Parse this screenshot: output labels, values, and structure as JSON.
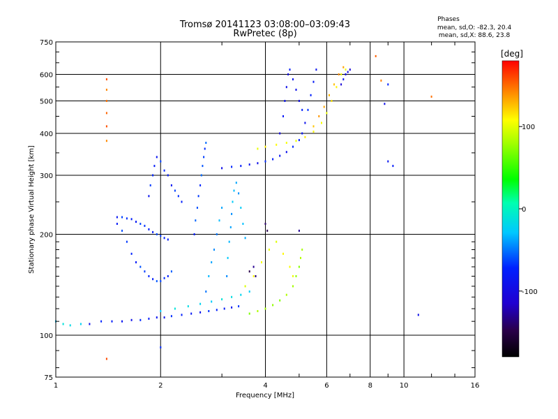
{
  "chart_data": {
    "type": "scatter",
    "title": "Tromsø 20141123 03:08:00–03:09:43",
    "subtitle": "RwPretec (8p)",
    "xlabel": "Frequency [MHz]",
    "ylabel": "Stationary phase Virtual Height [km]",
    "x_scale": "log",
    "y_scale": "log",
    "xlim": [
      1,
      16
    ],
    "ylim": [
      75,
      750
    ],
    "x_ticks": [
      1,
      2,
      4,
      6,
      8,
      10,
      16
    ],
    "x_tick_labels": [
      "1",
      "2",
      "4",
      "6",
      "8",
      "10",
      "16"
    ],
    "x_minor_ticks": [
      3,
      5,
      7,
      9,
      12,
      14
    ],
    "y_ticks": [
      75,
      100,
      200,
      300,
      400,
      500,
      600,
      750
    ],
    "y_tick_labels": [
      "75",
      "100",
      "200",
      "300",
      "400",
      "500",
      "600",
      "750"
    ],
    "y_minor_ticks": [
      80,
      90,
      110,
      120,
      130,
      140,
      150,
      160,
      170,
      180,
      190,
      250,
      350,
      450,
      550,
      650,
      700
    ],
    "grid": true,
    "phases_box": {
      "title": "Phases",
      "line1": "mean, sd,O: -82.3, 20.4",
      "line2": "mean, sd,X: 88.6, 23.8"
    },
    "colorbar": {
      "label": "[deg]",
      "range": [
        -180,
        180
      ],
      "ticks": [
        100,
        0,
        -100
      ],
      "tick_labels": [
        "100",
        "0",
        "-100"
      ],
      "colors": [
        "#ff0000",
        "#ff8800",
        "#ffff00",
        "#00ff00",
        "#00ffff",
        "#0000ff",
        "#220044",
        "#000000"
      ]
    },
    "traces": [
      {
        "desc": "O low",
        "phase": -95,
        "pts": [
          [
            1.25,
            108
          ],
          [
            1.35,
            110
          ],
          [
            1.45,
            110
          ],
          [
            1.55,
            110
          ],
          [
            1.65,
            111
          ],
          [
            1.75,
            111
          ],
          [
            1.85,
            112
          ],
          [
            1.95,
            113
          ],
          [
            2.05,
            113
          ],
          [
            2.15,
            114
          ],
          [
            2.3,
            115
          ],
          [
            2.45,
            116
          ],
          [
            2.6,
            117
          ],
          [
            2.75,
            118
          ],
          [
            2.9,
            119
          ],
          [
            3.05,
            120
          ],
          [
            3.2,
            121
          ],
          [
            3.35,
            122
          ]
        ]
      },
      {
        "desc": "O low cyan",
        "phase": -40,
        "pts": [
          [
            1.0,
            110
          ],
          [
            1.05,
            108
          ],
          [
            1.1,
            107
          ],
          [
            1.18,
            108
          ],
          [
            2.0,
            118
          ],
          [
            2.2,
            120
          ],
          [
            2.4,
            122
          ],
          [
            2.6,
            124
          ],
          [
            2.8,
            126
          ],
          [
            3.0,
            128
          ],
          [
            3.2,
            130
          ],
          [
            3.4,
            132
          ],
          [
            3.6,
            135
          ]
        ]
      },
      {
        "desc": "O column 1.5",
        "phase": -85,
        "pts": [
          [
            1.5,
            215
          ],
          [
            1.55,
            205
          ],
          [
            1.6,
            190
          ],
          [
            1.65,
            175
          ],
          [
            1.7,
            165
          ],
          [
            1.75,
            160
          ],
          [
            1.8,
            155
          ],
          [
            1.85,
            150
          ],
          [
            1.9,
            147
          ],
          [
            1.95,
            145
          ],
          [
            2.0,
            145
          ],
          [
            2.05,
            148
          ],
          [
            2.1,
            150
          ],
          [
            2.15,
            155
          ]
        ]
      },
      {
        "desc": "O arch 1.5",
        "phase": -88,
        "pts": [
          [
            1.5,
            225
          ],
          [
            1.55,
            225
          ],
          [
            1.6,
            223
          ],
          [
            1.65,
            222
          ],
          [
            1.7,
            218
          ],
          [
            1.75,
            215
          ],
          [
            1.8,
            212
          ],
          [
            1.85,
            207
          ],
          [
            1.9,
            203
          ],
          [
            1.95,
            200
          ],
          [
            2.0,
            198
          ],
          [
            2.05,
            195
          ],
          [
            2.1,
            193
          ]
        ]
      },
      {
        "desc": "O 1.9 column",
        "phase": -90,
        "pts": [
          [
            1.85,
            260
          ],
          [
            1.87,
            280
          ],
          [
            1.9,
            300
          ],
          [
            1.92,
            320
          ],
          [
            1.95,
            340
          ],
          [
            2.0,
            330
          ],
          [
            2.05,
            310
          ],
          [
            2.1,
            300
          ],
          [
            2.15,
            280
          ],
          [
            2.2,
            270
          ],
          [
            2.25,
            260
          ],
          [
            2.3,
            250
          ]
        ]
      },
      {
        "desc": "O 2.5 column",
        "phase": -80,
        "pts": [
          [
            2.5,
            200
          ],
          [
            2.52,
            220
          ],
          [
            2.55,
            240
          ],
          [
            2.57,
            260
          ],
          [
            2.6,
            280
          ],
          [
            2.62,
            300
          ],
          [
            2.64,
            320
          ],
          [
            2.66,
            340
          ],
          [
            2.68,
            360
          ],
          [
            2.7,
            375
          ]
        ]
      },
      {
        "desc": "O upper",
        "phase": -95,
        "pts": [
          [
            3.0,
            315
          ],
          [
            3.2,
            318
          ],
          [
            3.4,
            320
          ],
          [
            3.6,
            323
          ],
          [
            3.8,
            326
          ],
          [
            4.0,
            330
          ],
          [
            4.2,
            335
          ],
          [
            4.4,
            343
          ],
          [
            4.6,
            352
          ],
          [
            4.8,
            365
          ],
          [
            5.0,
            382
          ],
          [
            5.1,
            400
          ],
          [
            5.2,
            430
          ],
          [
            5.3,
            470
          ],
          [
            5.4,
            520
          ],
          [
            5.5,
            570
          ],
          [
            5.6,
            620
          ]
        ]
      },
      {
        "desc": "O 4.5 column",
        "phase": -100,
        "pts": [
          [
            4.4,
            400
          ],
          [
            4.5,
            450
          ],
          [
            4.55,
            500
          ],
          [
            4.6,
            550
          ],
          [
            4.65,
            600
          ],
          [
            4.7,
            620
          ],
          [
            4.8,
            580
          ],
          [
            4.9,
            540
          ],
          [
            5.0,
            500
          ],
          [
            5.1,
            470
          ]
        ]
      },
      {
        "desc": "O 3.0 cyan column",
        "phase": -55,
        "pts": [
          [
            3.1,
            150
          ],
          [
            3.12,
            170
          ],
          [
            3.15,
            190
          ],
          [
            3.18,
            210
          ],
          [
            3.2,
            230
          ],
          [
            3.22,
            250
          ],
          [
            3.25,
            270
          ],
          [
            3.3,
            285
          ],
          [
            3.35,
            265
          ],
          [
            3.4,
            240
          ],
          [
            3.45,
            215
          ],
          [
            3.5,
            195
          ]
        ]
      },
      {
        "desc": "O 2.8 cyan",
        "phase": -60,
        "pts": [
          [
            2.7,
            135
          ],
          [
            2.75,
            150
          ],
          [
            2.8,
            165
          ],
          [
            2.85,
            180
          ],
          [
            2.9,
            200
          ],
          [
            2.95,
            220
          ],
          [
            3.0,
            240
          ]
        ]
      },
      {
        "desc": "X low green",
        "phase": 60,
        "pts": [
          [
            3.6,
            116
          ],
          [
            3.8,
            118
          ],
          [
            4.0,
            120
          ],
          [
            4.2,
            123
          ],
          [
            4.4,
            127
          ],
          [
            4.6,
            132
          ],
          [
            4.8,
            140
          ],
          [
            4.9,
            150
          ],
          [
            5.0,
            160
          ],
          [
            5.05,
            170
          ],
          [
            5.1,
            180
          ]
        ]
      },
      {
        "desc": "X mid yellow",
        "phase": 95,
        "pts": [
          [
            3.5,
            140
          ],
          [
            3.7,
            150
          ],
          [
            3.9,
            165
          ],
          [
            4.1,
            180
          ],
          [
            4.3,
            190
          ],
          [
            4.5,
            175
          ],
          [
            4.7,
            160
          ],
          [
            4.8,
            150
          ]
        ]
      },
      {
        "desc": "X upper yellow",
        "phase": 100,
        "pts": [
          [
            3.8,
            360
          ],
          [
            4.0,
            365
          ],
          [
            4.3,
            370
          ],
          [
            4.6,
            375
          ],
          [
            4.9,
            380
          ],
          [
            5.2,
            390
          ],
          [
            5.5,
            405
          ],
          [
            5.8,
            430
          ],
          [
            6.0,
            460
          ],
          [
            6.2,
            500
          ],
          [
            6.4,
            550
          ],
          [
            6.6,
            600
          ],
          [
            6.8,
            620
          ]
        ]
      },
      {
        "desc": "X upper orange",
        "phase": 130,
        "pts": [
          [
            5.5,
            420
          ],
          [
            5.7,
            450
          ],
          [
            5.9,
            480
          ],
          [
            6.1,
            520
          ],
          [
            6.3,
            560
          ],
          [
            6.5,
            600
          ],
          [
            6.7,
            630
          ]
        ]
      },
      {
        "desc": "O 6-7 column",
        "phase": -105,
        "pts": [
          [
            6.6,
            560
          ],
          [
            6.7,
            580
          ],
          [
            6.8,
            600
          ],
          [
            6.9,
            610
          ],
          [
            7.0,
            620
          ]
        ]
      },
      {
        "desc": "purple dots",
        "phase": -140,
        "pts": [
          [
            3.6,
            155
          ],
          [
            3.7,
            160
          ],
          [
            3.75,
            150
          ],
          [
            4.0,
            215
          ],
          [
            4.05,
            205
          ],
          [
            5.0,
            205
          ]
        ]
      },
      {
        "desc": "scattered",
        "phase": 150,
        "pts": [
          [
            1.4,
            380
          ],
          [
            1.4,
            420
          ],
          [
            1.4,
            460
          ],
          [
            1.4,
            500
          ],
          [
            1.4,
            540
          ],
          [
            1.4,
            580
          ],
          [
            8.3,
            680
          ],
          [
            12.0,
            515
          ],
          [
            8.6,
            575
          ],
          [
            1.4,
            85
          ]
        ]
      },
      {
        "desc": "scattered blue",
        "phase": -95,
        "pts": [
          [
            8.8,
            490
          ],
          [
            9.0,
            560
          ],
          [
            9.3,
            320
          ],
          [
            9.0,
            330
          ],
          [
            11.0,
            115
          ],
          [
            2.0,
            92
          ]
        ]
      }
    ]
  }
}
